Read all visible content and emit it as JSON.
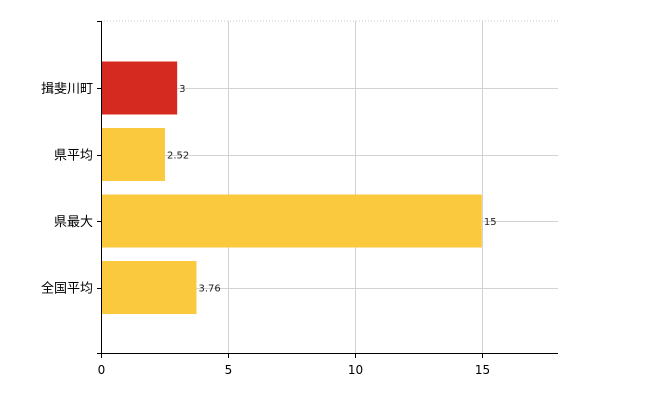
{
  "chart_data": {
    "type": "bar",
    "orientation": "horizontal",
    "categories": [
      "揖斐川町",
      "県平均",
      "県最大",
      "全国平均"
    ],
    "values": [
      3,
      2.52,
      15,
      3.76
    ],
    "value_labels": [
      "3",
      "2.52",
      "15",
      "3.76"
    ],
    "bar_colors": [
      "#d42a1f",
      "#fbc93d",
      "#fbc93d",
      "#fbc93d"
    ],
    "xlim": [
      0,
      18
    ],
    "xticks": [
      0,
      5,
      10,
      15
    ],
    "xtick_labels": [
      "0",
      "5",
      "10",
      "15"
    ],
    "grid": true,
    "legend": "none"
  },
  "colors": {
    "highlight": "#d42a1f",
    "default": "#fbc93d",
    "grid": "#d3d3d3",
    "axis": "#000000"
  }
}
